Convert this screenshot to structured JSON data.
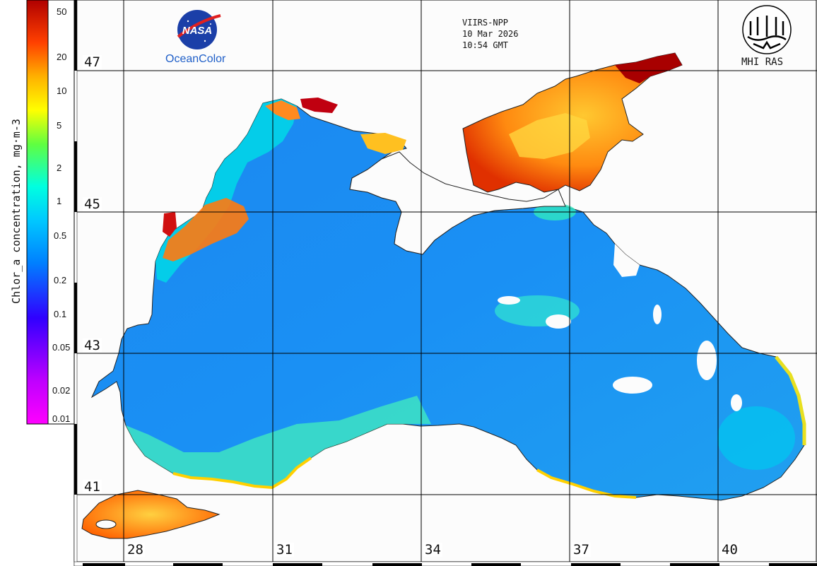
{
  "header": {
    "sensor": "VIIRS-NPP",
    "date": "10 Mar 2026",
    "time": "10:54 GMT",
    "left_logo_text": "NASA",
    "left_logo_caption": "OceanColor",
    "right_logo_caption": "MHI RAS"
  },
  "colorbar": {
    "title": "Chlor_a concentration, mg·m-3",
    "scale": "log",
    "range": [
      0.01,
      50
    ],
    "ticks": [
      "50",
      "20",
      "10",
      "5",
      "2",
      "1",
      "0.5",
      "0.2",
      "0.1",
      "0.05",
      "0.02",
      "0.01"
    ],
    "colors": [
      "#ff00ff",
      "#a000ff",
      "#2000ff",
      "#0070ff",
      "#00c8ff",
      "#00ffd0",
      "#40ff40",
      "#ffff00",
      "#ffa000",
      "#ff3000",
      "#d00000",
      "#800000"
    ]
  },
  "map": {
    "region": "Black Sea",
    "latitude_labels": [
      "47",
      "45",
      "43",
      "41"
    ],
    "longitude_labels": [
      "28",
      "31",
      "34",
      "37",
      "40"
    ],
    "colors": {
      "land": "#fcfcfc",
      "coastline": "#000000",
      "open_sea": "#1e90ff",
      "shelf": "#00e0e8",
      "azov_sea": "#ff8c00",
      "high_chl": "#c00000"
    }
  }
}
